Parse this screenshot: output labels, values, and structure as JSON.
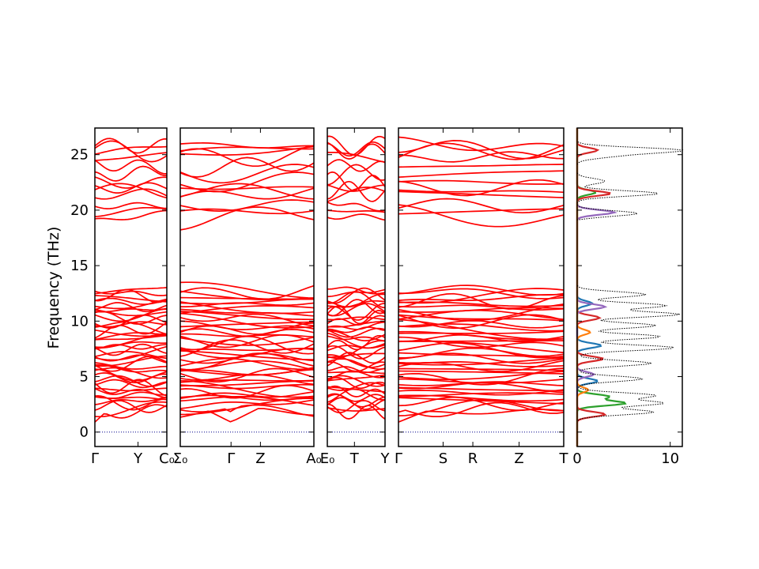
{
  "chart_data": {
    "type": "line",
    "ylabel": "Frequency (THz)",
    "ylim": [
      -1.3,
      27.4
    ],
    "yticks": [
      0,
      5,
      10,
      15,
      20,
      25
    ],
    "band_color": "#ff0000",
    "zero_line_color": "#00008b",
    "panels": [
      {
        "kind": "band",
        "labels": [
          "Γ",
          "Y",
          "C₀"
        ],
        "label_positions": [
          0,
          0.6,
          1.0
        ]
      },
      {
        "kind": "band",
        "labels": [
          "Σ₀",
          "Γ",
          "Z",
          "A₀"
        ],
        "label_positions": [
          0,
          0.38,
          0.6,
          1.0
        ]
      },
      {
        "kind": "band",
        "labels": [
          "E₀",
          "T",
          "Y"
        ],
        "label_positions": [
          0,
          0.47,
          1.0
        ]
      },
      {
        "kind": "band",
        "labels": [
          "Γ",
          "S",
          "R",
          "Z",
          "T"
        ],
        "label_positions": [
          0,
          0.27,
          0.45,
          0.73,
          1.0
        ]
      },
      {
        "kind": "dos",
        "xlim": [
          0,
          11.3
        ],
        "xticks": [
          "0",
          "10"
        ],
        "xtick_values": [
          0,
          10
        ],
        "series": [
          {
            "name": "",
            "color": "#1f77b4",
            "peaks": [
              [
                4.6,
                2.2
              ],
              [
                7.8,
                2.6
              ],
              [
                11.6,
                1.6
              ]
            ]
          },
          {
            "name": "",
            "color": "#2ca02c",
            "peaks": [
              [
                2.6,
                5.2
              ],
              [
                3.2,
                3.4
              ],
              [
                21.6,
                2.0
              ]
            ]
          },
          {
            "name": "",
            "color": "#d62728",
            "peaks": [
              [
                1.6,
                3.0
              ],
              [
                6.6,
                2.8
              ],
              [
                10.3,
                2.4
              ],
              [
                21.5,
                3.6
              ],
              [
                25.4,
                2.2
              ]
            ]
          },
          {
            "name": "",
            "color": "#9467bd",
            "peaks": [
              [
                5.2,
                1.8
              ],
              [
                11.3,
                3.0
              ],
              [
                19.8,
                4.0
              ]
            ]
          },
          {
            "name": "",
            "color": "#ff7f0e",
            "peaks": [
              [
                3.8,
                1.2
              ],
              [
                9.0,
                1.4
              ]
            ]
          }
        ],
        "total": {
          "name": "",
          "color": "#000000",
          "peaks": [
            [
              1.8,
              8.2
            ],
            [
              2.6,
              9.2
            ],
            [
              3.3,
              8.4
            ],
            [
              4.8,
              7.0
            ],
            [
              6.2,
              8.0
            ],
            [
              7.6,
              10.5
            ],
            [
              8.6,
              9.0
            ],
            [
              9.6,
              8.5
            ],
            [
              10.6,
              11.0
            ],
            [
              11.4,
              9.6
            ],
            [
              12.4,
              7.4
            ],
            [
              19.7,
              6.5
            ],
            [
              21.5,
              8.8
            ],
            [
              22.6,
              3.0
            ],
            [
              24.9,
              3.5
            ],
            [
              25.4,
              11.0
            ]
          ]
        }
      }
    ]
  }
}
